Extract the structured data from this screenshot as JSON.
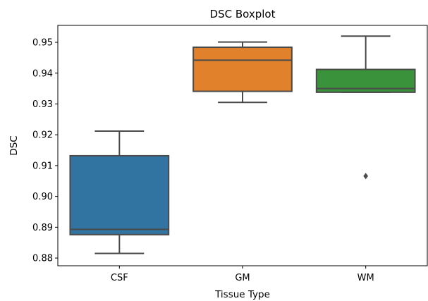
{
  "chart_data": {
    "type": "box",
    "title": "DSC Boxplot",
    "xlabel": "Tissue Type",
    "ylabel": "DSC",
    "ylim": [
      0.8775,
      0.9555
    ],
    "yticks": [
      0.88,
      0.89,
      0.9,
      0.91,
      0.92,
      0.93,
      0.94,
      0.95
    ],
    "ytick_labels": [
      "0.88",
      "0.89",
      "0.90",
      "0.91",
      "0.92",
      "0.93",
      "0.94",
      "0.95"
    ],
    "grid": false,
    "categories": [
      "CSF",
      "GM",
      "WM"
    ],
    "boxes": [
      {
        "category": "CSF",
        "whisker_low": 0.8815,
        "q1": 0.8876,
        "median": 0.8893,
        "q3": 0.9132,
        "whisker_high": 0.9212,
        "outliers": [],
        "color": "#3274a1"
      },
      {
        "category": "GM",
        "whisker_low": 0.9305,
        "q1": 0.9341,
        "median": 0.9442,
        "q3": 0.9484,
        "whisker_high": 0.9501,
        "outliers": [],
        "color": "#e1812c"
      },
      {
        "category": "WM",
        "whisker_low": 0.9338,
        "q1": 0.9338,
        "median": 0.935,
        "q3": 0.9412,
        "whisker_high": 0.952,
        "outliers": [
          0.9066
        ],
        "color": "#3a923a"
      }
    ],
    "line_color": "#4a4a4a"
  }
}
